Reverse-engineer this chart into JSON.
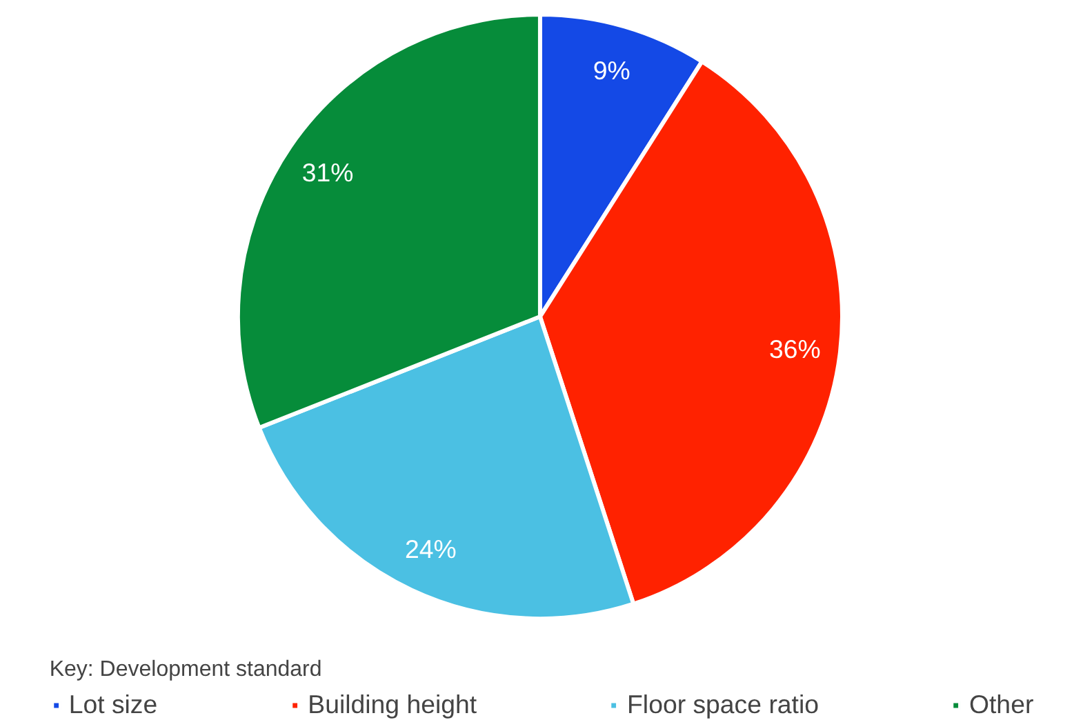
{
  "chart_data": {
    "type": "pie",
    "legend_title": "Key: Development standard",
    "categories": [
      "Lot size",
      "Building height",
      "Floor space ratio",
      "Other"
    ],
    "values": [
      9,
      36,
      24,
      31
    ],
    "colors": [
      "#1449e6",
      "#ff2200",
      "#4bc0e3",
      "#068c3a"
    ],
    "value_labels": [
      "9%",
      "36%",
      "24%",
      "31%"
    ],
    "legend": "bottom"
  }
}
